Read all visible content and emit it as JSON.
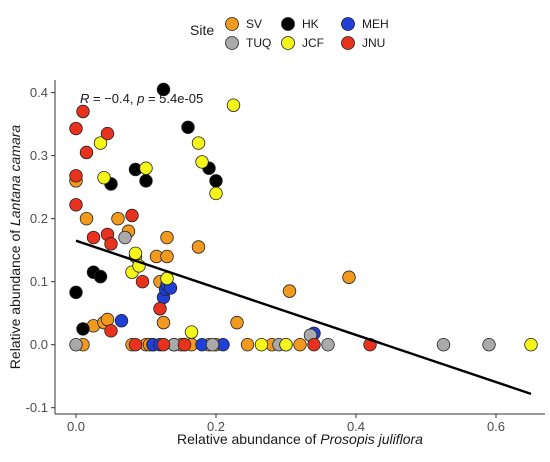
{
  "chart_data": {
    "type": "scatter",
    "xlabel_prefix": "Relative abundance of ",
    "xlabel_species": "Prosopis juliflora",
    "ylabel_prefix": "Relative abundance of ",
    "ylabel_species": "Lantana camara",
    "xlim": [
      -0.03,
      0.67
    ],
    "ylim": [
      -0.11,
      0.42
    ],
    "x_ticks": [
      0.0,
      0.2,
      0.4,
      0.6
    ],
    "x_tick_labels": [
      "0.0",
      "0.2",
      "0.4",
      "0.6"
    ],
    "y_ticks": [
      -0.1,
      0.0,
      0.1,
      0.2,
      0.3,
      0.4
    ],
    "y_tick_labels": [
      "-0.1",
      "0.0",
      "0.1",
      "0.2",
      "0.3",
      "0.4"
    ],
    "grid": false,
    "legend": {
      "title": "Site",
      "position": "top",
      "entries": [
        {
          "label": "SV",
          "color": "#F39A1E"
        },
        {
          "label": "HK",
          "color": "#000000"
        },
        {
          "label": "MEH",
          "color": "#1F3FD6"
        },
        {
          "label": "TUQ",
          "color": "#AAAAAA"
        },
        {
          "label": "JCF",
          "color": "#F5F51A"
        },
        {
          "label": "JNU",
          "color": "#E8321E"
        }
      ]
    },
    "annotation": {
      "r_prefix": "R",
      "r_rest": " = −0.4, ",
      "p_prefix": "p",
      "p_rest": " = 5.4e-05"
    },
    "regression": {
      "x": [
        0.0,
        0.65
      ],
      "y": [
        0.165,
        -0.078
      ]
    },
    "series": [
      {
        "name": "SV",
        "color": "#F39A1E",
        "points": [
          [
            0.0,
            0.26
          ],
          [
            0.01,
            0.0
          ],
          [
            0.015,
            0.2
          ],
          [
            0.025,
            0.03
          ],
          [
            0.04,
            0.035
          ],
          [
            0.045,
            0.04
          ],
          [
            0.06,
            0.2
          ],
          [
            0.075,
            0.18
          ],
          [
            0.08,
            0.0
          ],
          [
            0.085,
            0.14
          ],
          [
            0.1,
            0.0
          ],
          [
            0.105,
            0.0
          ],
          [
            0.11,
            0.0
          ],
          [
            0.115,
            0.14
          ],
          [
            0.12,
            0.1
          ],
          [
            0.13,
            0.17
          ],
          [
            0.13,
            0.14
          ],
          [
            0.14,
            0.0
          ],
          [
            0.15,
            0.0
          ],
          [
            0.155,
            0.0
          ],
          [
            0.165,
            0.0
          ],
          [
            0.175,
            0.155
          ],
          [
            0.19,
            0.0
          ],
          [
            0.2,
            0.0
          ],
          [
            0.23,
            0.035
          ],
          [
            0.245,
            0.0
          ],
          [
            0.28,
            0.0
          ],
          [
            0.305,
            0.085
          ],
          [
            0.32,
            0.0
          ],
          [
            0.39,
            0.107
          ],
          [
            0.125,
            0.035
          ]
        ]
      },
      {
        "name": "HK",
        "color": "#000000",
        "points": [
          [
            0.0,
            0.083
          ],
          [
            0.01,
            0.025
          ],
          [
            0.025,
            0.115
          ],
          [
            0.035,
            0.108
          ],
          [
            0.05,
            0.255
          ],
          [
            0.085,
            0.278
          ],
          [
            0.1,
            0.26
          ],
          [
            0.125,
            0.405
          ],
          [
            0.16,
            0.345
          ],
          [
            0.19,
            0.28
          ],
          [
            0.2,
            0.26
          ]
        ]
      },
      {
        "name": "MEH",
        "color": "#1F3FD6",
        "points": [
          [
            0.065,
            0.038
          ],
          [
            0.11,
            0.0
          ],
          [
            0.12,
            0.0
          ],
          [
            0.125,
            0.075
          ],
          [
            0.128,
            0.088
          ],
          [
            0.13,
            0.095
          ],
          [
            0.135,
            0.09
          ],
          [
            0.18,
            0.0
          ],
          [
            0.21,
            0.0
          ],
          [
            0.34,
            0.018
          ]
        ]
      },
      {
        "name": "TUQ",
        "color": "#AAAAAA",
        "points": [
          [
            0.0,
            0.0
          ],
          [
            0.07,
            0.17
          ],
          [
            0.14,
            0.0
          ],
          [
            0.195,
            0.0
          ],
          [
            0.29,
            0.0
          ],
          [
            0.3,
            0.0
          ],
          [
            0.335,
            0.015
          ],
          [
            0.36,
            0.0
          ],
          [
            0.525,
            0.0
          ],
          [
            0.59,
            0.0
          ]
        ]
      },
      {
        "name": "JCF",
        "color": "#F5F51A",
        "points": [
          [
            0.035,
            0.32
          ],
          [
            0.04,
            0.265
          ],
          [
            0.08,
            0.115
          ],
          [
            0.085,
            0.145
          ],
          [
            0.09,
            0.125
          ],
          [
            0.1,
            0.28
          ],
          [
            0.13,
            0.105
          ],
          [
            0.165,
            0.02
          ],
          [
            0.175,
            0.32
          ],
          [
            0.18,
            0.29
          ],
          [
            0.2,
            0.24
          ],
          [
            0.225,
            0.38
          ],
          [
            0.265,
            0.0
          ],
          [
            0.3,
            0.0
          ],
          [
            0.65,
            0.0
          ]
        ]
      },
      {
        "name": "JNU",
        "color": "#E8321E",
        "points": [
          [
            0.0,
            0.343
          ],
          [
            0.0,
            0.268
          ],
          [
            0.0,
            0.222
          ],
          [
            0.01,
            0.37
          ],
          [
            0.015,
            0.305
          ],
          [
            0.025,
            0.17
          ],
          [
            0.045,
            0.335
          ],
          [
            0.045,
            0.175
          ],
          [
            0.05,
            0.16
          ],
          [
            0.05,
            0.022
          ],
          [
            0.08,
            0.205
          ],
          [
            0.085,
            0.0
          ],
          [
            0.095,
            0.1
          ],
          [
            0.12,
            0.057
          ],
          [
            0.125,
            0.0
          ],
          [
            0.155,
            0.0
          ],
          [
            0.34,
            0.0
          ],
          [
            0.42,
            0.0
          ]
        ]
      }
    ]
  }
}
